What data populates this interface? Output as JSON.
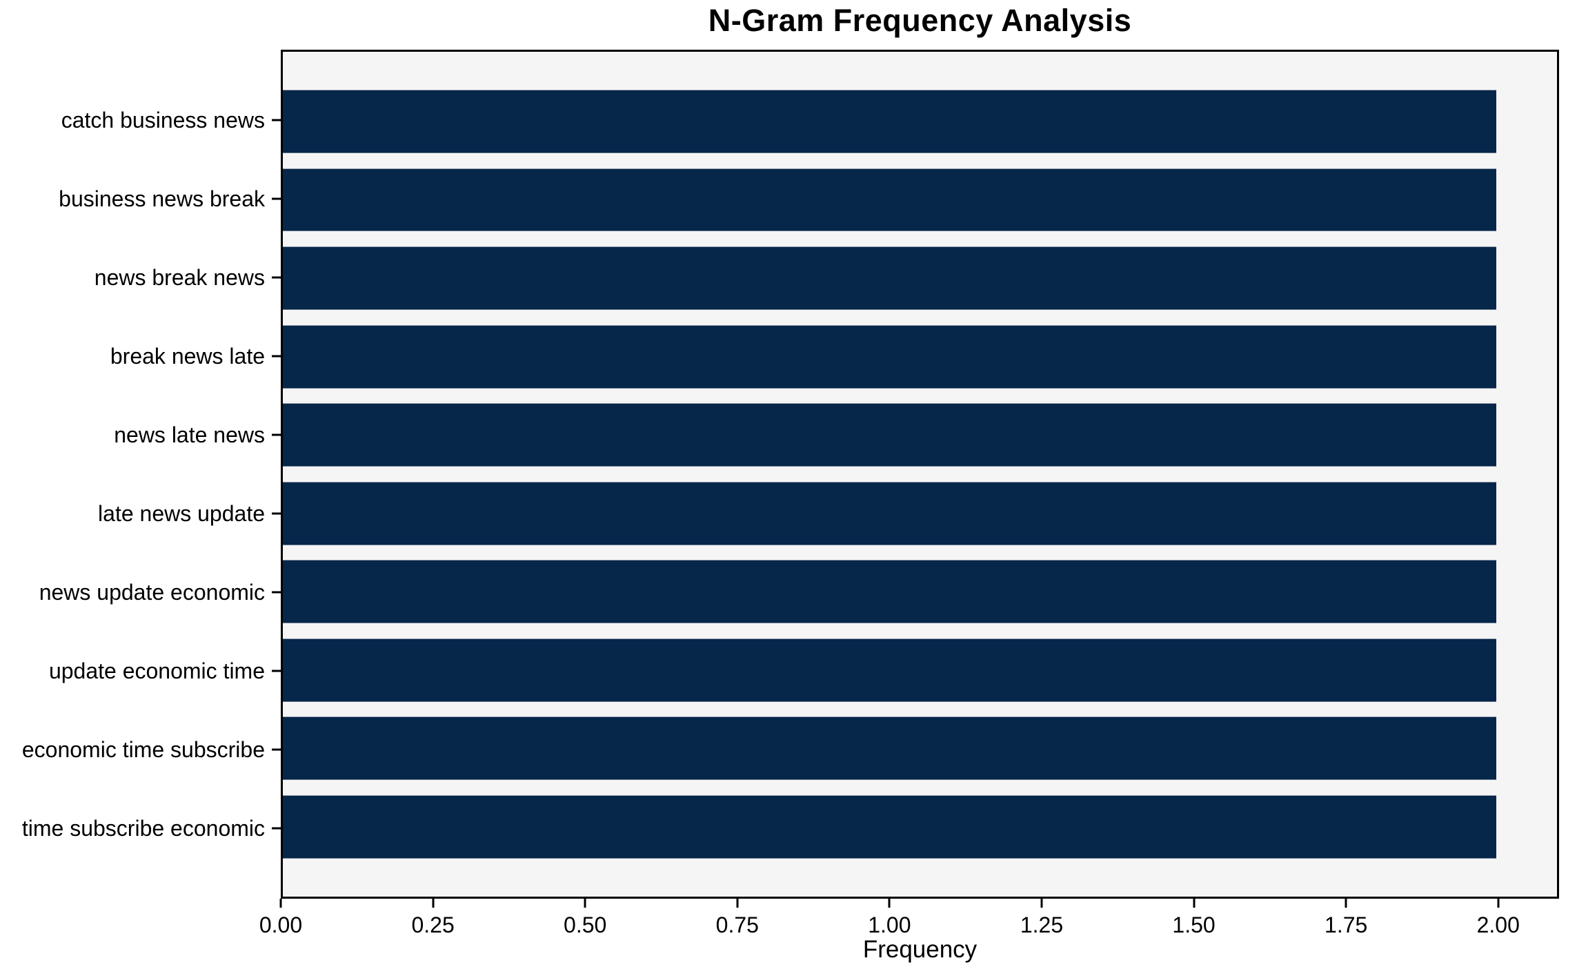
{
  "title": "N-Gram Frequency Analysis",
  "chart_data": {
    "type": "bar",
    "orientation": "horizontal",
    "title": "N-Gram Frequency Analysis",
    "categories": [
      "catch business news",
      "business news break",
      "news break news",
      "break news late",
      "news late news",
      "late news update",
      "news update economic",
      "update economic time",
      "economic time subscribe",
      "time subscribe economic"
    ],
    "values": [
      2,
      2,
      2,
      2,
      2,
      2,
      2,
      2,
      2,
      2
    ],
    "xlabel": "Frequency",
    "ylabel": "",
    "xlim": [
      0,
      2.1
    ],
    "xticks": [
      0,
      0.25,
      0.5,
      0.75,
      1.0,
      1.25,
      1.5,
      1.75,
      2.0
    ],
    "xtick_labels": [
      "0.00",
      "0.25",
      "0.50",
      "0.75",
      "1.00",
      "1.25",
      "1.50",
      "1.75",
      "2.00"
    ],
    "bar_height_frac": 0.8,
    "grid": "off",
    "legend": "none",
    "colors": {
      "bar": "#06264a",
      "plot_background": "#f5f5f5",
      "figure_background": "#ffffff",
      "axis": "#000000",
      "text": "#000000"
    }
  }
}
